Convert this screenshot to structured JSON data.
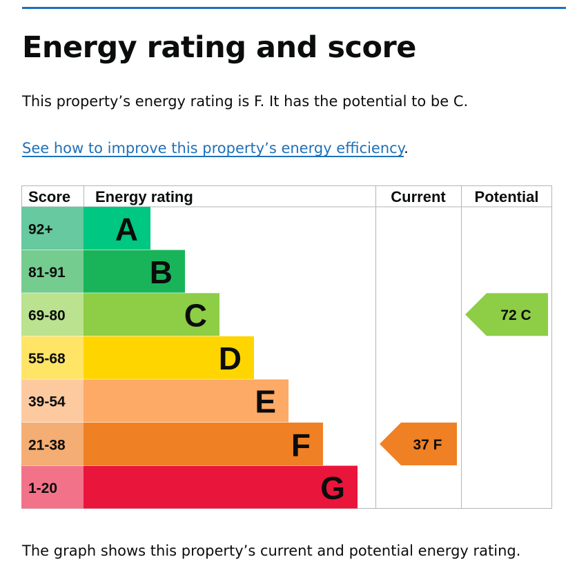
{
  "page": {
    "title": "Energy rating and score",
    "intro": "This property’s energy rating is F. It has the potential to be C.",
    "link_text": "See how to improve this property’s energy efficiency",
    "link_suffix": ".",
    "footnote": "The graph shows this property’s current and potential energy rating.",
    "accent_color": "#1d70b8"
  },
  "chart_data": {
    "type": "bar",
    "headers": {
      "score": "Score",
      "rating": "Energy rating",
      "current": "Current",
      "potential": "Potential"
    },
    "bands": [
      {
        "letter": "A",
        "range": "92+",
        "color": "#00c781",
        "score_bg": "#66c9a0"
      },
      {
        "letter": "B",
        "range": "81-91",
        "color": "#19b459",
        "score_bg": "#75cc8f"
      },
      {
        "letter": "C",
        "range": "69-80",
        "color": "#8dce46",
        "score_bg": "#bbe28f"
      },
      {
        "letter": "D",
        "range": "55-68",
        "color": "#ffd500",
        "score_bg": "#ffe466"
      },
      {
        "letter": "E",
        "range": "39-54",
        "color": "#fcaa65",
        "score_bg": "#fdcaa0"
      },
      {
        "letter": "F",
        "range": "21-38",
        "color": "#ef8023",
        "score_bg": "#f4ad72"
      },
      {
        "letter": "G",
        "range": "1-20",
        "color": "#e9153b",
        "score_bg": "#f27389"
      }
    ],
    "current": {
      "score": 37,
      "letter": "F",
      "label": "37  F",
      "color": "#ef8023"
    },
    "potential": {
      "score": 72,
      "letter": "C",
      "label": "72  C",
      "color": "#8dce46"
    }
  }
}
